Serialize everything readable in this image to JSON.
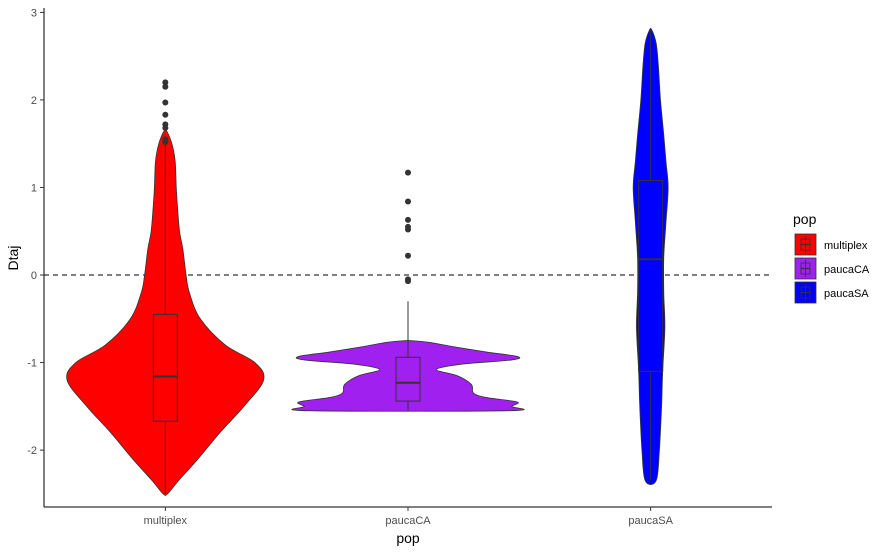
{
  "chart_data": {
    "type": "violin",
    "xlabel": "pop",
    "ylabel": "Dtaj",
    "ylim": [
      -2.65,
      3.05
    ],
    "yticks": [
      -2,
      -1,
      0,
      1,
      2,
      3
    ],
    "reference_line": {
      "y": 0,
      "style": "dashed"
    },
    "grid": false,
    "legend": {
      "title": "pop",
      "position": "right"
    },
    "categories": [
      "multiplex",
      "paucaCA",
      "paucaSA"
    ],
    "series": [
      {
        "name": "multiplex",
        "color": "#ff0000",
        "violin_range": [
          -2.5,
          1.65
        ],
        "violin_profile": [
          [
            -2.5,
            0.02
          ],
          [
            -2.35,
            0.12
          ],
          [
            -2.1,
            0.3
          ],
          [
            -1.8,
            0.5
          ],
          [
            -1.5,
            0.72
          ],
          [
            -1.2,
            0.9
          ],
          [
            -1.0,
            0.82
          ],
          [
            -0.8,
            0.55
          ],
          [
            -0.5,
            0.32
          ],
          [
            -0.2,
            0.22
          ],
          [
            0.0,
            0.19
          ],
          [
            0.3,
            0.16
          ],
          [
            0.5,
            0.13
          ],
          [
            0.8,
            0.11
          ],
          [
            1.0,
            0.1
          ],
          [
            1.3,
            0.09
          ],
          [
            1.5,
            0.06
          ],
          [
            1.65,
            0.01
          ]
        ],
        "box": {
          "q1": -1.67,
          "median": -1.16,
          "q3": -0.45,
          "whisker_low": -2.5,
          "whisker_high": 1.5
        },
        "outliers": [
          1.52,
          1.55,
          1.68,
          1.72,
          1.83,
          1.97,
          2.15,
          2.2
        ]
      },
      {
        "name": "paucaCA",
        "color": "#a020f0",
        "violin_range": [
          -1.55,
          -0.75
        ],
        "violin_profile": [
          [
            -1.55,
            0.92
          ],
          [
            -1.5,
            0.95
          ],
          [
            -1.45,
            1.0
          ],
          [
            -1.4,
            0.72
          ],
          [
            -1.35,
            0.6
          ],
          [
            -1.25,
            0.58
          ],
          [
            -1.15,
            0.45
          ],
          [
            -1.08,
            0.26
          ],
          [
            -1.02,
            0.48
          ],
          [
            -0.97,
            0.95
          ],
          [
            -0.93,
            1.0
          ],
          [
            -0.88,
            0.72
          ],
          [
            -0.82,
            0.42
          ],
          [
            -0.77,
            0.2
          ],
          [
            -0.75,
            0.03
          ]
        ],
        "box": {
          "q1": -1.44,
          "median": -1.23,
          "q3": -0.94,
          "whisker_low": -1.55,
          "whisker_high": -0.3
        },
        "outliers": [
          -0.05,
          -0.07,
          0.22,
          0.52,
          0.55,
          0.63,
          0.84,
          1.17
        ]
      },
      {
        "name": "paucaSA",
        "color": "#0000ff",
        "violin_range": [
          -2.35,
          2.8
        ],
        "violin_profile": [
          [
            -2.35,
            0.05
          ],
          [
            -2.0,
            0.08
          ],
          [
            -1.5,
            0.1
          ],
          [
            -1.1,
            0.11
          ],
          [
            -0.6,
            0.13
          ],
          [
            -0.2,
            0.12
          ],
          [
            0.2,
            0.12
          ],
          [
            0.6,
            0.14
          ],
          [
            1.0,
            0.16
          ],
          [
            1.3,
            0.14
          ],
          [
            1.6,
            0.12
          ],
          [
            2.0,
            0.09
          ],
          [
            2.4,
            0.07
          ],
          [
            2.65,
            0.05
          ],
          [
            2.8,
            0.01
          ]
        ],
        "box": {
          "q1": -1.1,
          "median": 0.18,
          "q3": 1.08,
          "whisker_low": -2.35,
          "whisker_high": 2.8
        },
        "outliers": []
      }
    ]
  }
}
